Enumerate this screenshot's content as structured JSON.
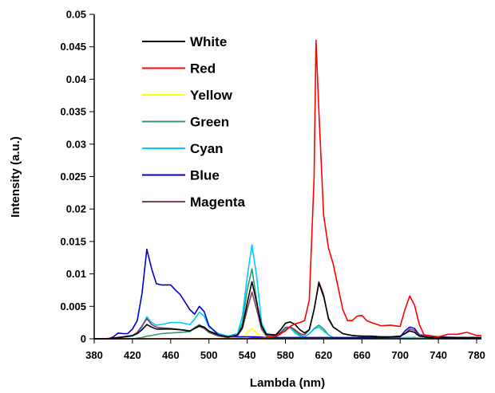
{
  "chart_data": {
    "type": "line",
    "title": "",
    "xlabel": "Lambda (nm)",
    "ylabel": "Intensity (a.u.)",
    "xlim": [
      380,
      785
    ],
    "ylim": [
      0,
      0.05
    ],
    "xticks": [
      380,
      420,
      460,
      500,
      540,
      580,
      620,
      660,
      700,
      740,
      780
    ],
    "yticks": [
      0,
      0.005,
      0.01,
      0.015,
      0.02,
      0.025,
      0.03,
      0.035,
      0.04,
      0.045,
      0.05
    ],
    "ytick_labels": [
      "0",
      "0.005",
      "0.01",
      "0.015",
      "0.02",
      "0.025",
      "0.03",
      "0.035",
      "0.04",
      "0.045",
      "0.05"
    ],
    "grid": false,
    "legend_position": "top-left",
    "series": [
      {
        "name": "White",
        "color": "#000000",
        "x": [
          380,
          390,
          400,
          410,
          420,
          425,
          430,
          435,
          440,
          445,
          450,
          460,
          470,
          480,
          485,
          490,
          495,
          500,
          510,
          520,
          530,
          535,
          540,
          545,
          550,
          555,
          560,
          570,
          575,
          580,
          585,
          590,
          595,
          600,
          605,
          610,
          615,
          620,
          625,
          630,
          640,
          650,
          660,
          670,
          680,
          690,
          700,
          705,
          710,
          715,
          720,
          730,
          740,
          750,
          760,
          770,
          780,
          785
        ],
        "y": [
          0,
          0,
          0.0001,
          0.0003,
          0.0005,
          0.0008,
          0.0014,
          0.0022,
          0.0018,
          0.0015,
          0.0015,
          0.0015,
          0.0014,
          0.0012,
          0.0016,
          0.002,
          0.0018,
          0.0012,
          0.0006,
          0.0003,
          0.0006,
          0.0018,
          0.0055,
          0.0088,
          0.0055,
          0.002,
          0.0007,
          0.0006,
          0.0014,
          0.0024,
          0.0026,
          0.0022,
          0.0014,
          0.0009,
          0.0014,
          0.0045,
          0.0086,
          0.0065,
          0.0032,
          0.0018,
          0.0008,
          0.0005,
          0.0004,
          0.0004,
          0.0003,
          0.0003,
          0.0004,
          0.0008,
          0.0012,
          0.001,
          0.0004,
          0.0002,
          0.0002,
          0.0002,
          0.0002,
          0.0002,
          0.0002,
          0.0002
        ]
      },
      {
        "name": "Red",
        "color": "#ff0000",
        "x": [
          380,
          400,
          420,
          440,
          460,
          480,
          500,
          520,
          540,
          545,
          550,
          560,
          570,
          580,
          585,
          590,
          595,
          600,
          605,
          610,
          612,
          615,
          620,
          625,
          630,
          635,
          640,
          645,
          650,
          655,
          660,
          665,
          670,
          680,
          690,
          695,
          700,
          705,
          710,
          715,
          720,
          725,
          730,
          740,
          750,
          760,
          770,
          780,
          785
        ],
        "y": [
          0,
          0,
          0,
          0,
          0,
          0,
          0,
          0,
          0,
          0.0001,
          0.0001,
          0.0002,
          0.0004,
          0.0012,
          0.0019,
          0.0023,
          0.0025,
          0.0028,
          0.006,
          0.0248,
          0.046,
          0.035,
          0.019,
          0.014,
          0.0115,
          0.008,
          0.0045,
          0.0028,
          0.0028,
          0.0035,
          0.0036,
          0.0028,
          0.0025,
          0.002,
          0.0021,
          0.002,
          0.0019,
          0.0045,
          0.0066,
          0.0052,
          0.0022,
          0.0006,
          0.0005,
          0.0003,
          0.0007,
          0.0007,
          0.001,
          0.0005,
          0.0005
        ]
      },
      {
        "name": "Yellow",
        "color": "#ffff00",
        "x": [
          380,
          400,
          420,
          440,
          460,
          480,
          500,
          520,
          530,
          535,
          540,
          545,
          550,
          555,
          560,
          570,
          580,
          590,
          600,
          610,
          620,
          630,
          640,
          660,
          680,
          700,
          720,
          740,
          760,
          780,
          785
        ],
        "y": [
          0,
          0,
          0,
          0,
          0,
          0,
          0,
          0,
          0,
          0.0003,
          0.0009,
          0.0016,
          0.0009,
          0.0003,
          0,
          0,
          0,
          0,
          0,
          0,
          0,
          0,
          0,
          0,
          0,
          0,
          0,
          0,
          0,
          0,
          0
        ]
      },
      {
        "name": "Green",
        "color": "#339966",
        "x": [
          380,
          400,
          420,
          430,
          435,
          440,
          450,
          460,
          470,
          480,
          485,
          490,
          495,
          500,
          510,
          520,
          530,
          535,
          540,
          545,
          550,
          555,
          560,
          570,
          575,
          580,
          585,
          590,
          595,
          600,
          605,
          610,
          615,
          620,
          625,
          630,
          640,
          660,
          680,
          700,
          705,
          710,
          715,
          720,
          740,
          760,
          780,
          785
        ],
        "y": [
          0,
          0,
          0,
          0.0002,
          0.0004,
          0.0005,
          0.0008,
          0.0009,
          0.001,
          0.0011,
          0.0017,
          0.0022,
          0.0017,
          0.001,
          0.0004,
          0.0002,
          0.0005,
          0.0025,
          0.0075,
          0.0108,
          0.0058,
          0.0015,
          0.0004,
          0.0003,
          0.0007,
          0.0014,
          0.0019,
          0.0012,
          0.0006,
          0.0003,
          0.0008,
          0.0016,
          0.0021,
          0.0015,
          0.0006,
          0.0002,
          0.0001,
          0.0001,
          0.0001,
          0.0001,
          0.0001,
          0.0002,
          0.0002,
          0.0001,
          0.0001,
          0.0001,
          0.0001,
          0.0001
        ]
      },
      {
        "name": "Cyan",
        "color": "#00ccff",
        "x": [
          380,
          400,
          420,
          425,
          430,
          435,
          440,
          445,
          450,
          460,
          470,
          480,
          485,
          490,
          495,
          500,
          510,
          520,
          530,
          535,
          540,
          545,
          550,
          555,
          560,
          570,
          575,
          580,
          585,
          590,
          595,
          600,
          605,
          610,
          615,
          620,
          625,
          630,
          640,
          660,
          680,
          700,
          705,
          710,
          715,
          720,
          740,
          760,
          780,
          785
        ],
        "y": [
          0,
          0,
          0.0004,
          0.0009,
          0.0018,
          0.0034,
          0.0025,
          0.0021,
          0.0022,
          0.0025,
          0.0025,
          0.0022,
          0.003,
          0.0041,
          0.0035,
          0.0018,
          0.0008,
          0.0004,
          0.0008,
          0.0035,
          0.0095,
          0.0145,
          0.0095,
          0.0025,
          0.0008,
          0.0005,
          0.001,
          0.0018,
          0.0017,
          0.0009,
          0.0004,
          0.0003,
          0.0008,
          0.0015,
          0.0018,
          0.0012,
          0.0006,
          0.0002,
          0.0001,
          0.0001,
          0.0001,
          0.0002,
          0.0002,
          0.0002,
          0.0002,
          0.0001,
          0.0001,
          0.0001,
          0.0001,
          0.0001
        ]
      },
      {
        "name": "Blue",
        "color": "#0000cc",
        "x": [
          380,
          395,
          400,
          405,
          410,
          415,
          420,
          425,
          430,
          435,
          440,
          445,
          450,
          460,
          465,
          470,
          480,
          485,
          490,
          495,
          500,
          510,
          520,
          530,
          540,
          545,
          550,
          560,
          570,
          580,
          590,
          600,
          620,
          640,
          660,
          680,
          700,
          705,
          710,
          715,
          720,
          740,
          760,
          780,
          785
        ],
        "y": [
          0,
          0,
          0.0003,
          0.0009,
          0.0008,
          0.0008,
          0.0015,
          0.0028,
          0.007,
          0.0138,
          0.0108,
          0.0085,
          0.0083,
          0.0083,
          0.0075,
          0.0068,
          0.0045,
          0.0038,
          0.005,
          0.0042,
          0.002,
          0.0006,
          0.0003,
          0.0003,
          0.0003,
          0.0003,
          0.0003,
          0.0002,
          0.0002,
          0.0002,
          0.0002,
          0.0002,
          0.0002,
          0.0002,
          0.0002,
          0.0002,
          0.0003,
          0.0012,
          0.0018,
          0.0016,
          0.0006,
          0.0003,
          0.0002,
          0.0002,
          0.0002
        ]
      },
      {
        "name": "Magenta",
        "color": "#7f3f5f",
        "x": [
          380,
          400,
          420,
          425,
          430,
          435,
          440,
          445,
          450,
          460,
          470,
          480,
          485,
          490,
          495,
          500,
          510,
          520,
          530,
          535,
          540,
          545,
          550,
          555,
          560,
          570,
          575,
          580,
          585,
          590,
          595,
          600,
          605,
          610,
          615,
          620,
          625,
          630,
          640,
          650,
          660,
          670,
          680,
          690,
          700,
          705,
          710,
          715,
          720,
          730,
          740,
          760,
          780,
          785
        ],
        "y": [
          0,
          0,
          0.0005,
          0.001,
          0.002,
          0.0031,
          0.0022,
          0.0018,
          0.0017,
          0.0016,
          0.0014,
          0.0012,
          0.0016,
          0.0019,
          0.0016,
          0.001,
          0.0005,
          0.0002,
          0.0005,
          0.0016,
          0.0045,
          0.0072,
          0.0045,
          0.0015,
          0.0006,
          0.0005,
          0.001,
          0.0017,
          0.0018,
          0.0014,
          0.0008,
          0.0006,
          0.0014,
          0.0045,
          0.0088,
          0.0068,
          0.003,
          0.0018,
          0.0008,
          0.0005,
          0.0004,
          0.0004,
          0.0003,
          0.0003,
          0.0004,
          0.0008,
          0.0015,
          0.0013,
          0.0005,
          0.0003,
          0.0002,
          0.0002,
          0.0002,
          0.0002
        ]
      }
    ]
  }
}
